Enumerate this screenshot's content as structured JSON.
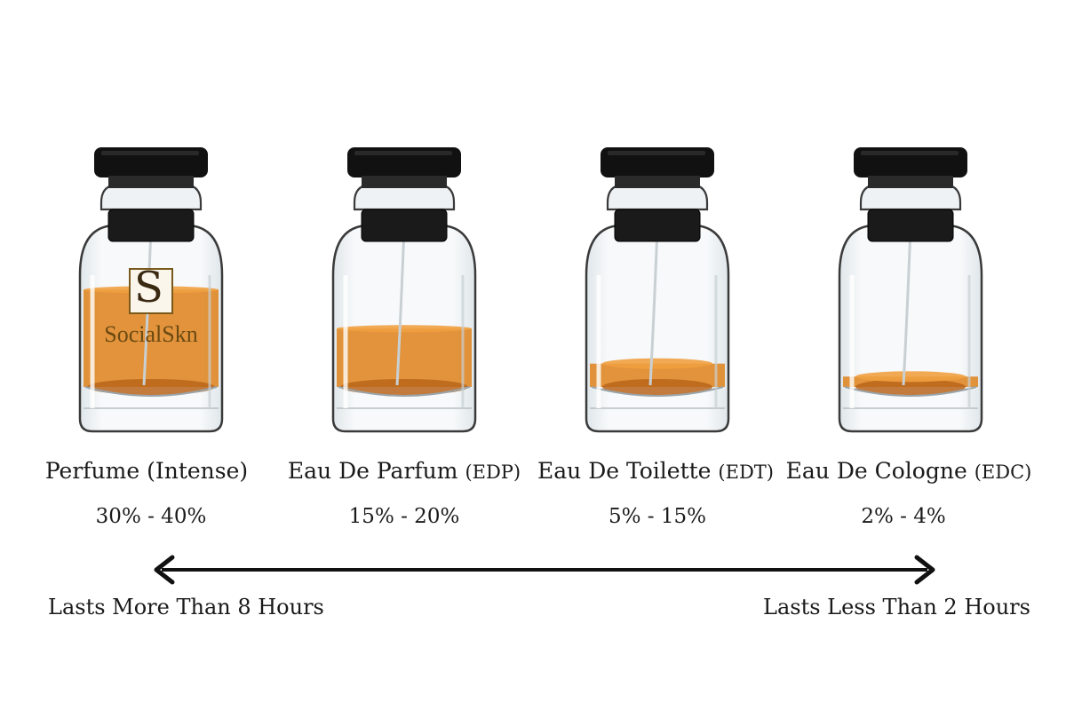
{
  "watermark": {
    "brand": "SocialSkn",
    "monogram": "S"
  },
  "products": [
    {
      "name": "Perfume",
      "abbr": "(Intense)",
      "concentration": "30% - 40%",
      "fill_fraction": 0.75
    },
    {
      "name": "Eau De Parfum",
      "abbr": "(EDP)",
      "concentration": "15% - 20%",
      "fill_fraction": 0.45
    },
    {
      "name": "Eau De Toilette",
      "abbr": "(EDT)",
      "concentration": "5% - 15%",
      "fill_fraction": 0.18
    },
    {
      "name": "Eau De Cologne",
      "abbr": "(EDC)",
      "concentration": "2% - 4%",
      "fill_fraction": 0.08
    }
  ],
  "duration": {
    "left_label": "Lasts More Than 8 Hours",
    "right_label": "Lasts Less Than 2 Hours"
  },
  "colors": {
    "liquid": "#e08a2a",
    "liquid_dark": "#b8651a",
    "cap": "#111111",
    "glass_edge": "#3a3a3a"
  }
}
